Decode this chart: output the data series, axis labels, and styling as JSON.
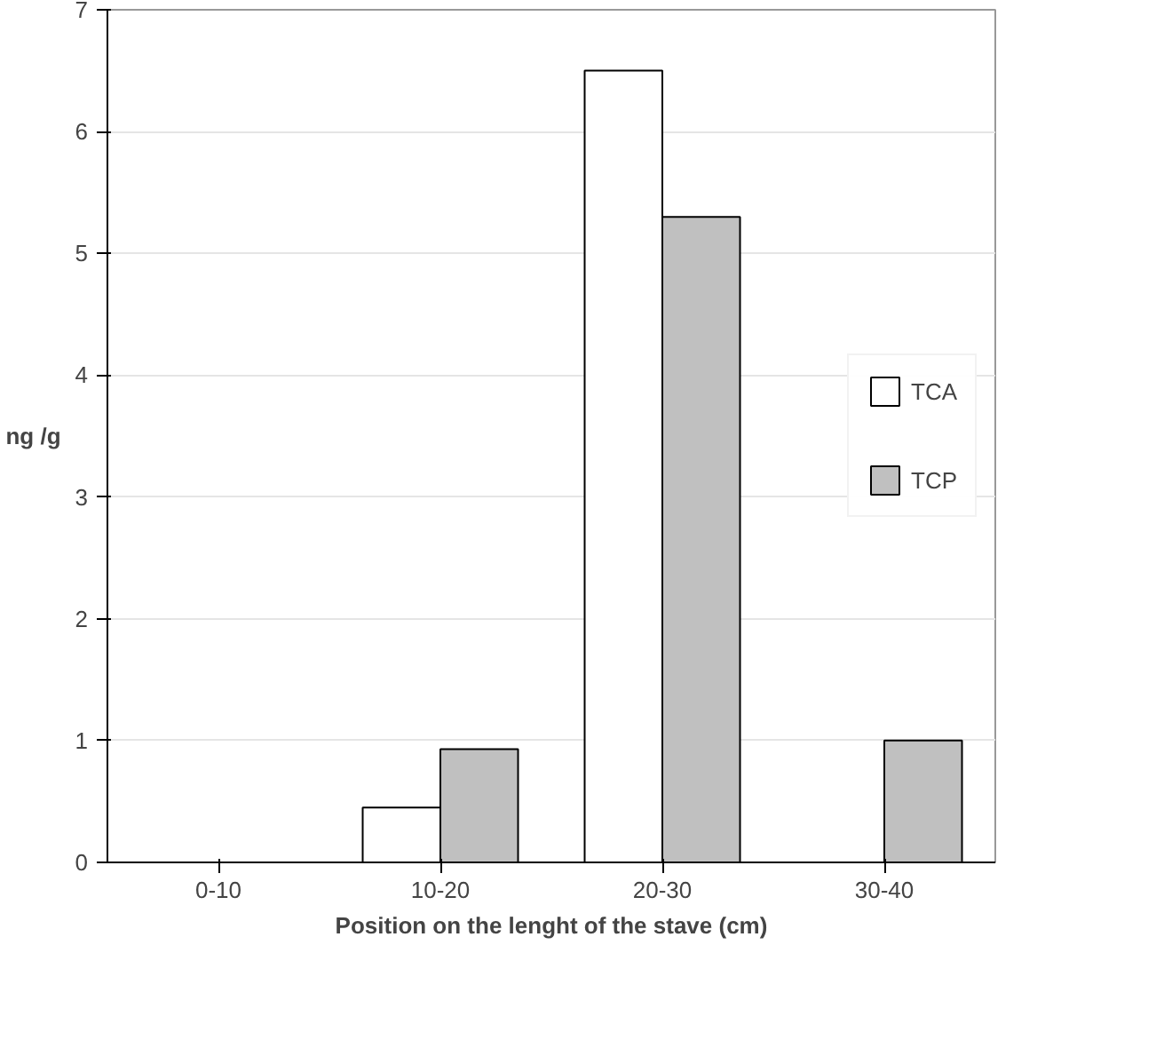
{
  "chart_data": {
    "type": "bar",
    "ylabel": "ng /g",
    "xlabel": "Position on the lenght of the stave (cm)",
    "categories": [
      "0-10",
      "10-20",
      "20-30",
      "30-40"
    ],
    "series": [
      {
        "name": "TCA",
        "color": "#ffffff",
        "values": [
          0,
          0.45,
          6.5,
          0
        ]
      },
      {
        "name": "TCP",
        "color": "#c0c0c0",
        "values": [
          0,
          0.93,
          5.3,
          1.0
        ]
      }
    ],
    "ylim": [
      0,
      7
    ],
    "yticks": [
      0,
      1,
      2,
      3,
      4,
      5,
      6,
      7
    ],
    "grid": "y",
    "legend": "right"
  }
}
